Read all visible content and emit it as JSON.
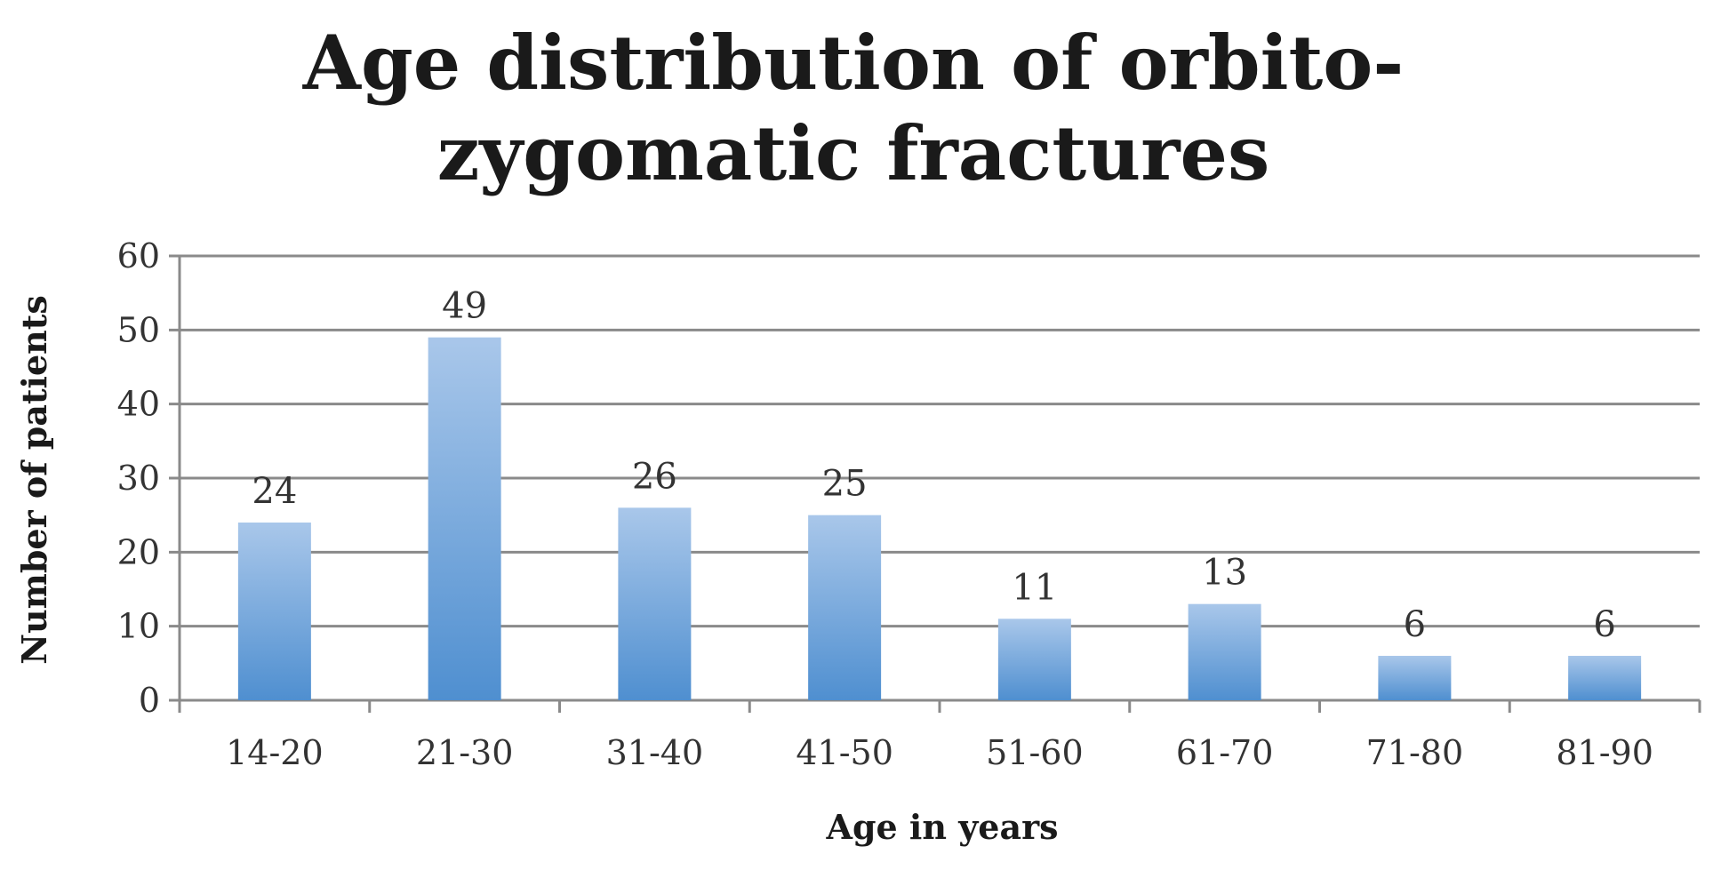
{
  "chart_data": {
    "type": "bar",
    "title": "Age distribution of orbito-zygomatic fractures",
    "title_lines": [
      "Age distribution of orbito-",
      "zygomatic fractures"
    ],
    "categories": [
      "14-20",
      "21-30",
      "31-40",
      "41-50",
      "51-60",
      "61-70",
      "71-80",
      "81-90"
    ],
    "values": [
      24,
      49,
      26,
      25,
      11,
      13,
      6,
      6
    ],
    "data_labels": [
      "24",
      "49",
      "26",
      "25",
      "11",
      "13",
      "6",
      "6"
    ],
    "xlabel": "Age in years",
    "ylabel": "Number of patients",
    "ylim": [
      0,
      60
    ],
    "yticks": [
      0,
      10,
      20,
      30,
      40,
      50,
      60
    ],
    "grid": true,
    "legend": "none",
    "bar_color_top": "#a9c7ea",
    "bar_color_bottom": "#4f8fd0",
    "gridline_color": "#8a8a8a"
  }
}
